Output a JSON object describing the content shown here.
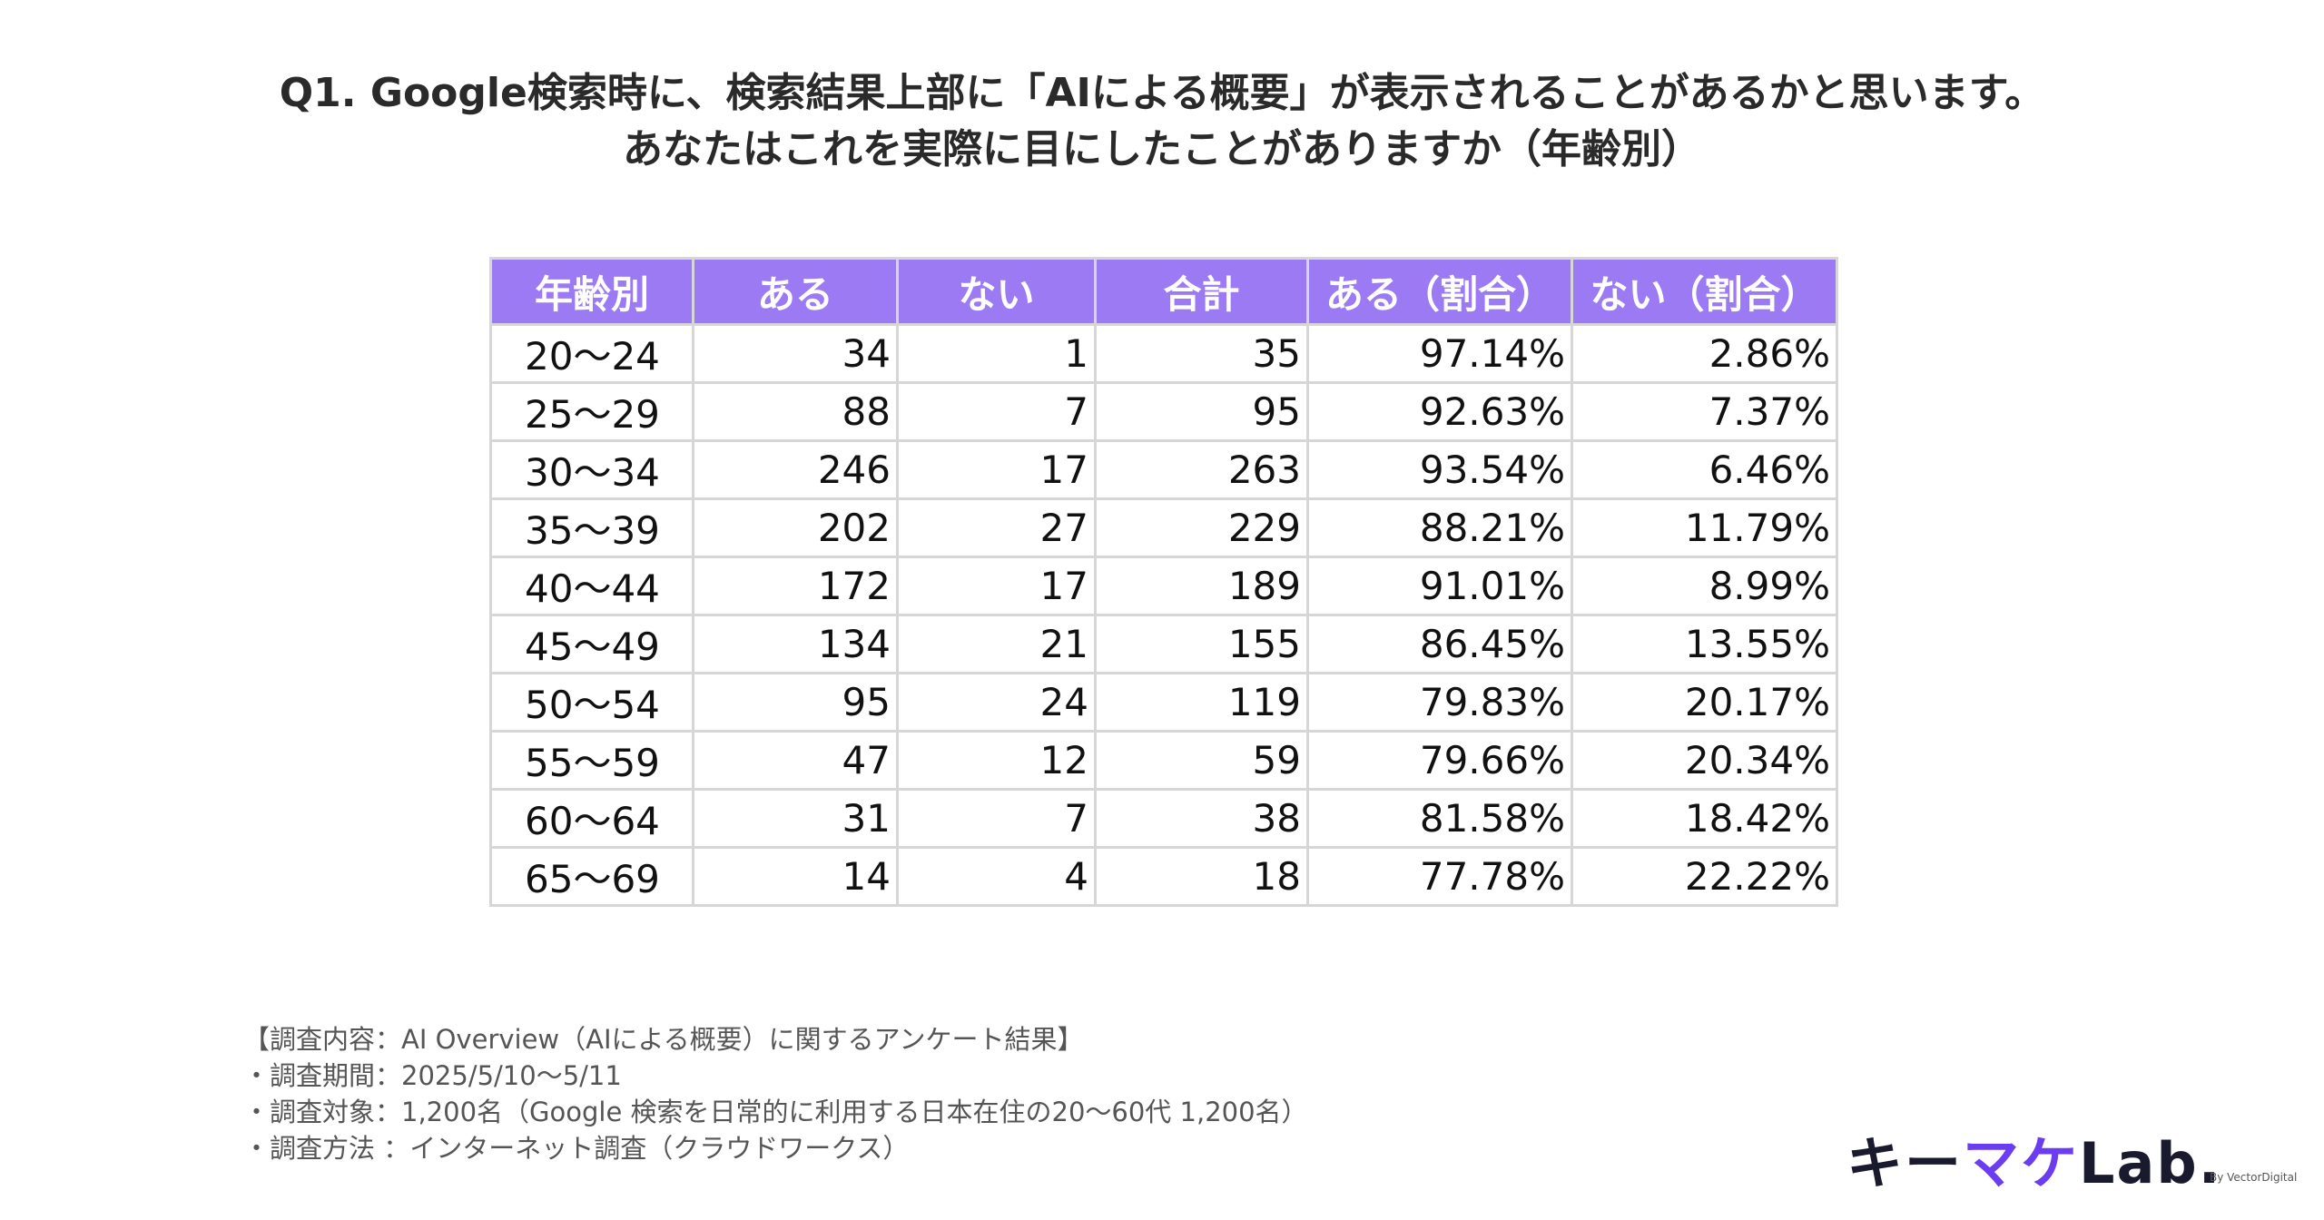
{
  "title": {
    "line1": "Q1. Google検索時に、検索結果上部に「AIによる概要」が表示されることがあるかと思います。",
    "line2": "あなたはこれを実際に目にしたことがありますか（年齢別）"
  },
  "chart_data": {
    "type": "table",
    "title": "Q1. Google検索時に、検索結果上部に「AIによる概要」が表示されることがあるかと思います。あなたはこれを実際に目にしたことがありますか（年齢別）",
    "columns": [
      "年齢別",
      "ある",
      "ない",
      "合計",
      "ある（割合）",
      "ない（割合）"
    ],
    "rows": [
      [
        "20〜24",
        "34",
        "1",
        "35",
        "97.14%",
        "2.86%"
      ],
      [
        "25〜29",
        "88",
        "7",
        "95",
        "92.63%",
        "7.37%"
      ],
      [
        "30〜34",
        "246",
        "17",
        "263",
        "93.54%",
        "6.46%"
      ],
      [
        "35〜39",
        "202",
        "27",
        "229",
        "88.21%",
        "11.79%"
      ],
      [
        "40〜44",
        "172",
        "17",
        "189",
        "91.01%",
        "8.99%"
      ],
      [
        "45〜49",
        "134",
        "21",
        "155",
        "86.45%",
        "13.55%"
      ],
      [
        "50〜54",
        "95",
        "24",
        "119",
        "79.83%",
        "20.17%"
      ],
      [
        "55〜59",
        "47",
        "12",
        "59",
        "79.66%",
        "20.34%"
      ],
      [
        "60〜64",
        "31",
        "7",
        "38",
        "81.58%",
        "18.42%"
      ],
      [
        "65〜69",
        "14",
        "4",
        "18",
        "77.78%",
        "22.22%"
      ]
    ]
  },
  "notes": [
    "【調査内容：AI Overview（AIによる概要）に関するアンケート結果】",
    "・調査期間：2025/5/10〜5/11",
    "・調査対象：1,200名（Google 検索を日常的に利用する日本在住の20〜60代 1,200名）",
    "・調査方法 ：インターネット調査（クラウドワークス）"
  ],
  "logo": {
    "part1": "キー",
    "part2": "マケ",
    "part3": "Lab.",
    "sub": "By VectorDigital"
  },
  "colors": {
    "header_bg": "#9b7af3",
    "header_text": "#ffffff",
    "grid": "#d6d6d6",
    "logo_accent": "#6a3df0"
  }
}
